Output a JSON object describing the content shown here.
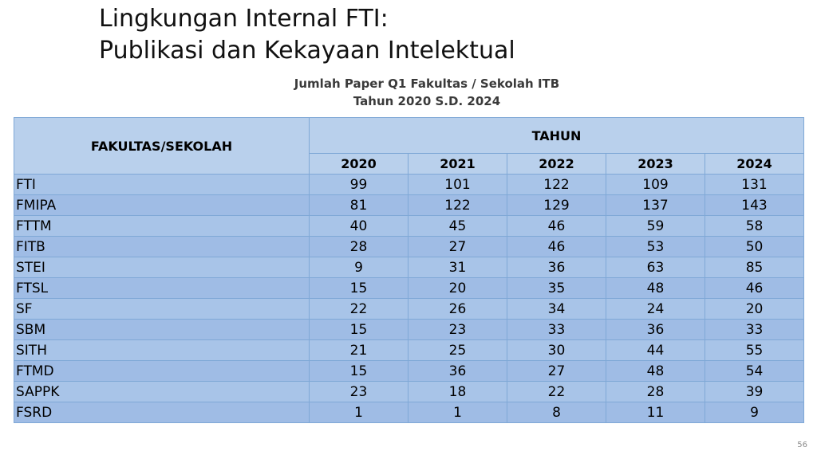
{
  "slide": {
    "title_line1": "Lingkungan Internal FTI:",
    "title_line2": "Publikasi dan Kekayaan Intelektual",
    "page_number": "56"
  },
  "table": {
    "caption_line1": "Jumlah Paper Q1 Fakultas / Sekolah ITB",
    "caption_line2": "Tahun 2020 S.D. 2024",
    "header_faculty": "FAKULTAS/SEKOLAH",
    "header_year_group": "TAHUN",
    "years": [
      "2020",
      "2021",
      "2022",
      "2023",
      "2024"
    ],
    "rows": [
      {
        "faculty": "FTI",
        "values": [
          "99",
          "101",
          "122",
          "109",
          "131"
        ]
      },
      {
        "faculty": "FMIPA",
        "values": [
          "81",
          "122",
          "129",
          "137",
          "143"
        ]
      },
      {
        "faculty": "FTTM",
        "values": [
          "40",
          "45",
          "46",
          "59",
          "58"
        ]
      },
      {
        "faculty": "FITB",
        "values": [
          "28",
          "27",
          "46",
          "53",
          "50"
        ]
      },
      {
        "faculty": "STEI",
        "values": [
          "9",
          "31",
          "36",
          "63",
          "85"
        ]
      },
      {
        "faculty": "FTSL",
        "values": [
          "15",
          "20",
          "35",
          "48",
          "46"
        ]
      },
      {
        "faculty": "SF",
        "values": [
          "22",
          "26",
          "34",
          "24",
          "20"
        ]
      },
      {
        "faculty": "SBM",
        "values": [
          "15",
          "23",
          "33",
          "36",
          "33"
        ]
      },
      {
        "faculty": "SITH",
        "values": [
          "21",
          "25",
          "30",
          "44",
          "55"
        ]
      },
      {
        "faculty": "FTMD",
        "values": [
          "15",
          "36",
          "27",
          "48",
          "54"
        ]
      },
      {
        "faculty": "SAPPK",
        "values": [
          "23",
          "18",
          "22",
          "28",
          "39"
        ]
      },
      {
        "faculty": "FSRD",
        "values": [
          "1",
          "1",
          "8",
          "11",
          "9"
        ]
      }
    ]
  }
}
